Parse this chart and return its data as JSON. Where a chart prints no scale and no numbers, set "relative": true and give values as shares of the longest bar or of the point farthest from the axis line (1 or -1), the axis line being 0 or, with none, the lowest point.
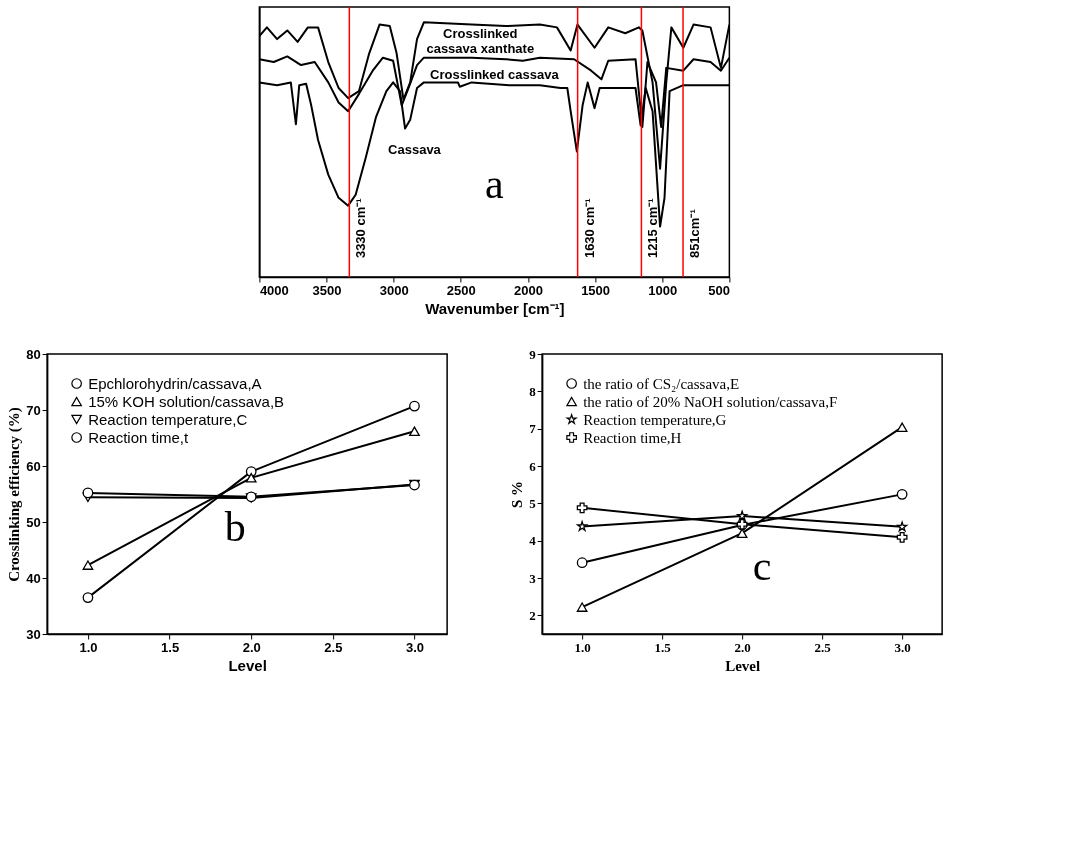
{
  "chart_data": [
    {
      "type": "line",
      "relative": true,
      "xlabel": "Wavenumber [cm⁻¹]",
      "xlim": [
        4000,
        500
      ],
      "xticks": [
        4000,
        3500,
        3000,
        2500,
        2000,
        1500,
        1000,
        500
      ],
      "tick_labels": "x",
      "grid": false,
      "legend": false,
      "marker": "none",
      "line_style": "solid",
      "series": [
        {
          "color": "#000000",
          "x": [
            4000,
            3944,
            3868,
            3792,
            3715,
            3639,
            3563,
            3487,
            3410,
            3339,
            3258,
            3182,
            3105,
            3029,
            2978,
            2927,
            2877,
            2826,
            2775,
            2419,
            2165,
            1911,
            1784,
            1682,
            1631,
            1504,
            1402,
            1275,
            1174,
            1148,
            1072,
            1016,
            970,
            932,
            843,
            767,
            640,
            563,
            500
          ],
          "values": [
            0.946,
            0.98,
            0.934,
            0.968,
            0.923,
            0.98,
            0.98,
            0.844,
            0.742,
            0.702,
            0.73,
            0.878,
            0.991,
            0.985,
            0.878,
            0.696,
            0.764,
            0.934,
            1.0,
            0.991,
            0.985,
            0.991,
            0.98,
            0.889,
            0.991,
            0.9,
            0.98,
            0.957,
            0.98,
            0.968,
            0.764,
            0.425,
            0.764,
            0.98,
            0.9,
            0.991,
            0.98,
            0.821,
            0.991
          ]
        },
        {
          "color": "#000000",
          "x": [
            4000,
            3893,
            3792,
            3690,
            3588,
            3487,
            3410,
            3339,
            3258,
            3156,
            3080,
            3004,
            2940,
            2889,
            2826,
            2775,
            2419,
            2165,
            2038,
            1911,
            1656,
            1529,
            1453,
            1402,
            1199,
            1148,
            1110,
            1046,
            1008,
            970,
            843,
            767,
            640,
            563,
            500
          ],
          "values": [
            0.855,
            0.844,
            0.866,
            0.832,
            0.844,
            0.764,
            0.685,
            0.651,
            0.719,
            0.81,
            0.861,
            0.849,
            0.674,
            0.742,
            0.832,
            0.861,
            0.861,
            0.855,
            0.849,
            0.861,
            0.855,
            0.81,
            0.776,
            0.849,
            0.855,
            0.589,
            0.844,
            0.764,
            0.589,
            0.821,
            0.81,
            0.855,
            0.844,
            0.81,
            0.861
          ]
        },
        {
          "color": "#000000",
          "x": [
            4000,
            3868,
            3766,
            3728,
            3703,
            3652,
            3614,
            3563,
            3487,
            3410,
            3339,
            3283,
            3207,
            3131,
            3054,
            3004,
            2953,
            2915,
            2877,
            2826,
            2775,
            2521,
            2508,
            2419,
            2139,
            1911,
            1758,
            1707,
            1682,
            1636,
            1593,
            1555,
            1504,
            1466,
            1199,
            1161,
            1123,
            1072,
            1016,
            983,
            945,
            843,
            500
          ],
          "values": [
            0.764,
            0.753,
            0.764,
            0.6,
            0.753,
            0.759,
            0.674,
            0.538,
            0.402,
            0.311,
            0.28,
            0.323,
            0.47,
            0.629,
            0.73,
            0.764,
            0.73,
            0.583,
            0.617,
            0.742,
            0.764,
            0.764,
            0.747,
            0.764,
            0.753,
            0.753,
            0.742,
            0.742,
            0.651,
            0.493,
            0.674,
            0.764,
            0.663,
            0.742,
            0.742,
            0.595,
            0.742,
            0.651,
            0.198,
            0.311,
            0.73,
            0.753,
            0.753
          ]
        }
      ],
      "ref_lines": [
        {
          "axis": "x",
          "value": 3330,
          "label": "3330 cm⁻¹",
          "color": "#ff0000"
        },
        {
          "axis": "x",
          "value": 1630,
          "label": "1630 cm⁻¹",
          "color": "#ff0000"
        },
        {
          "axis": "x",
          "value": 1155,
          "label": "1215 cm⁻¹",
          "color": "#ff0000"
        },
        {
          "axis": "x",
          "value": 845,
          "label": "851cm⁻¹",
          "color": "#ff0000"
        }
      ],
      "annotations": [
        "Crosslinked\ncassava xanthate",
        "Crosslinked cassava",
        "Cassava",
        "a"
      ]
    },
    {
      "type": "line",
      "xlabel": "Level",
      "ylabel": "Crosslinking efficiency (%)",
      "x": [
        1,
        2,
        3
      ],
      "xlim": [
        0.75,
        3.2
      ],
      "ylim": [
        30,
        80
      ],
      "xticks": [
        {
          "value": 1,
          "label": "1.0"
        },
        {
          "value": 1.5,
          "label": "1.5"
        },
        {
          "value": 2,
          "label": "2.0"
        },
        {
          "value": 2.5,
          "label": "2.5"
        },
        {
          "value": 3,
          "label": "3.0"
        }
      ],
      "yticks": [
        30,
        40,
        50,
        60,
        70,
        80
      ],
      "grid": false,
      "legend": "top left",
      "line_style": "solid",
      "series": [
        {
          "name": "Epchlorohydrin/cassava,A",
          "color": "#000000",
          "marker": "circle",
          "values": [
            36.5,
            59.0,
            70.7
          ]
        },
        {
          "name": "15% KOH solution/cassava,B",
          "color": "#000000",
          "marker": "triangle",
          "values": [
            42.3,
            57.9,
            66.2
          ]
        },
        {
          "name": "Reaction temperature,C",
          "color": "#000000",
          "marker": "triangle_down",
          "values": [
            54.4,
            54.3,
            56.7
          ]
        },
        {
          "name": "Reaction time,t",
          "color": "#000000",
          "marker": "circle",
          "values": [
            55.2,
            54.5,
            56.6
          ]
        }
      ],
      "annotations": [
        "b"
      ]
    },
    {
      "type": "line",
      "xlabel": "Level",
      "ylabel": "S %",
      "x": [
        1,
        2,
        3
      ],
      "xlim": [
        0.75,
        3.25
      ],
      "ylim": [
        1.5,
        9
      ],
      "xticks": [
        {
          "value": 1,
          "label": "1.0"
        },
        {
          "value": 1.5,
          "label": "1.5"
        },
        {
          "value": 2,
          "label": "2.0"
        },
        {
          "value": 2.5,
          "label": "2.5"
        },
        {
          "value": 3,
          "label": "3.0"
        }
      ],
      "yticks": [
        2,
        3,
        4,
        5,
        6,
        7,
        8,
        9
      ],
      "grid": false,
      "legend": "top left",
      "line_style": "solid",
      "series": [
        {
          "name": "the ratio of CS₂/cassava,E",
          "color": "#000000",
          "marker": "circle",
          "values": [
            3.41,
            4.42,
            5.24
          ]
        },
        {
          "name": "the ratio of 20% NaOH solution/cassava,F",
          "color": "#000000",
          "marker": "triangle",
          "values": [
            2.22,
            4.2,
            7.04
          ]
        },
        {
          "name": "Reaction temperature,G",
          "color": "#000000",
          "marker": "star",
          "values": [
            4.38,
            4.66,
            4.37
          ]
        },
        {
          "name": "Reaction time,H",
          "color": "#000000",
          "marker": "cross",
          "values": [
            4.88,
            4.44,
            4.09
          ]
        }
      ],
      "annotations": [
        "c"
      ]
    }
  ]
}
